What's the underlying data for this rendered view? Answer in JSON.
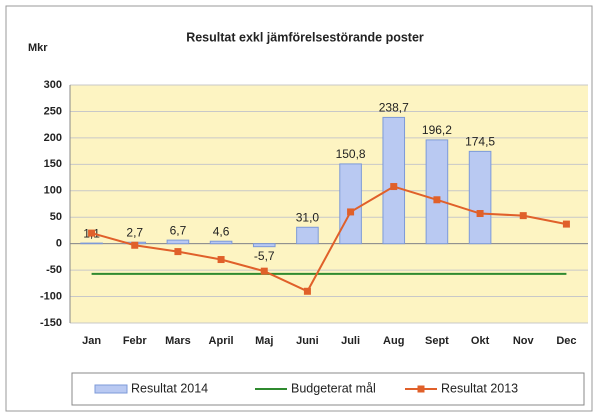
{
  "chart_data": {
    "type": "bar",
    "title": "Resultat exkl jämförelsestörande poster",
    "y_label": "Mkr",
    "categories": [
      "Jan",
      "Febr",
      "Mars",
      "April",
      "Maj",
      "Juni",
      "Juli",
      "Aug",
      "Sept",
      "Okt",
      "Nov",
      "Dec"
    ],
    "series": [
      {
        "name": "Resultat 2014",
        "type": "bar",
        "color": "#b9c9f2",
        "values": [
          1.1,
          2.7,
          6.7,
          4.6,
          -5.7,
          31.0,
          150.8,
          238.7,
          196.2,
          174.5,
          null,
          null
        ],
        "value_labels": [
          "1,1",
          "2,7",
          "6,7",
          "4,6",
          "-5,7",
          "31,0",
          "150,8",
          "238,7",
          "196,2",
          "174,5",
          null,
          null
        ]
      },
      {
        "name": "Budgeterat mål",
        "type": "line",
        "color": "#2f8a2f",
        "values": [
          -57,
          -57,
          -57,
          -57,
          -57,
          -57,
          -57,
          -57,
          -57,
          -57,
          -57,
          -57
        ]
      },
      {
        "name": "Resultat 2013",
        "type": "line",
        "marker": "square",
        "color": "#e0602a",
        "values": [
          20,
          -3,
          -15,
          -30,
          -52,
          -90,
          60,
          108,
          83,
          57,
          53,
          37
        ]
      }
    ],
    "ylim": [
      -150,
      300
    ],
    "yticks": [
      -150,
      -100,
      -50,
      0,
      50,
      100,
      150,
      200,
      250,
      300
    ],
    "grid": true
  }
}
